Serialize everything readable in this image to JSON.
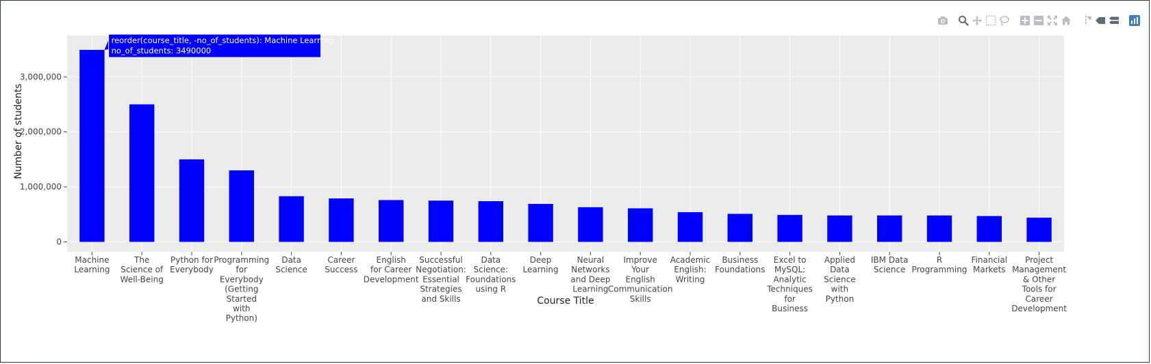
{
  "modebar": {
    "buttons": [
      {
        "name": "camera-icon",
        "group": 1
      },
      {
        "name": "zoom-icon",
        "group": 2
      },
      {
        "name": "pan-icon",
        "group": 2
      },
      {
        "name": "box-select-icon",
        "group": 2
      },
      {
        "name": "lasso-select-icon",
        "group": 2
      },
      {
        "name": "zoom-in-icon",
        "group": 3
      },
      {
        "name": "zoom-out-icon",
        "group": 3
      },
      {
        "name": "autoscale-icon",
        "group": 3
      },
      {
        "name": "reset-axes-icon",
        "group": 3
      },
      {
        "name": "spike-lines-icon",
        "group": 4
      },
      {
        "name": "hover-closest-icon",
        "group": 4
      },
      {
        "name": "hover-compare-icon",
        "group": 4
      },
      {
        "name": "plotly-logo-icon",
        "group": 5
      }
    ],
    "colors": {
      "icon": "#b8bec6",
      "logo": "#3f7fbf"
    }
  },
  "chart_data": {
    "type": "bar",
    "xlabel": "Course Title",
    "ylabel": "Number of students",
    "ylim": [
      -180000,
      3750000
    ],
    "yticks": [
      0,
      1000000,
      2000000,
      3000000
    ],
    "ytick_labels": [
      "0",
      "1,000,000",
      "2,000,000",
      "3,000,000"
    ],
    "grid": true,
    "bar_color": "#0000ff",
    "plot_bg": "#ebebeb",
    "categories": [
      "Machine Learning",
      "The Science of Well-Being",
      "Python for Everybody",
      "Programming for Everybody (Getting Started with Python)",
      "Data Science",
      "Career Success",
      "English for Career Development",
      "Successful Negotiation: Essential Strategies and Skills",
      "Data Science: Foundations using R",
      "Deep Learning",
      "Neural Networks and Deep Learning",
      "Improve Your English Communication Skills",
      "Academic English: Writing",
      "Business Foundations",
      "Excel to MySQL: Analytic Techniques for Business",
      "Applied Data Science with Python",
      "IBM Data Science",
      "R Programming",
      "Financial Markets",
      "Project Management & Other Tools for Career Development"
    ],
    "tick_label_lines": [
      [
        "Machine",
        "Learning"
      ],
      [
        "The",
        "Science of",
        "Well-Being"
      ],
      [
        "Python for",
        "Everybody"
      ],
      [
        "Programming",
        "for",
        "Everybody",
        "(Getting",
        "Started",
        "with",
        "Python)"
      ],
      [
        "Data",
        "Science"
      ],
      [
        "Career",
        "Success"
      ],
      [
        "English",
        "for Career",
        "Development"
      ],
      [
        "Successful",
        "Negotiation:",
        "Essential",
        "Strategies",
        "and Skills"
      ],
      [
        "Data",
        "Science:",
        "Foundations",
        "using R"
      ],
      [
        "Deep",
        "Learning"
      ],
      [
        "Neural",
        "Networks",
        "and Deep",
        "Learning"
      ],
      [
        "Improve",
        "Your",
        "English",
        "Communication",
        "Skills"
      ],
      [
        "Academic",
        "English:",
        "Writing"
      ],
      [
        "Business",
        "Foundations"
      ],
      [
        "Excel to",
        "MySQL:",
        "Analytic",
        "Techniques",
        "for",
        "Business"
      ],
      [
        "Applied",
        "Data",
        "Science",
        "with",
        "Python"
      ],
      [
        "IBM Data",
        "Science"
      ],
      [
        "R",
        "Programming"
      ],
      [
        "Financial",
        "Markets"
      ],
      [
        "Project",
        "Management",
        "& Other",
        "Tools for",
        "Career",
        "Development"
      ]
    ],
    "values": [
      3490000,
      2500000,
      1500000,
      1300000,
      830000,
      790000,
      760000,
      750000,
      740000,
      690000,
      630000,
      610000,
      540000,
      510000,
      490000,
      480000,
      480000,
      480000,
      470000,
      440000
    ],
    "tooltip": {
      "lines": [
        "reorder(course_title, -no_of_students): Machine Learning",
        "no_of_students: 3490000"
      ],
      "bg": "#0000ff",
      "fg": "#ffffff"
    }
  }
}
